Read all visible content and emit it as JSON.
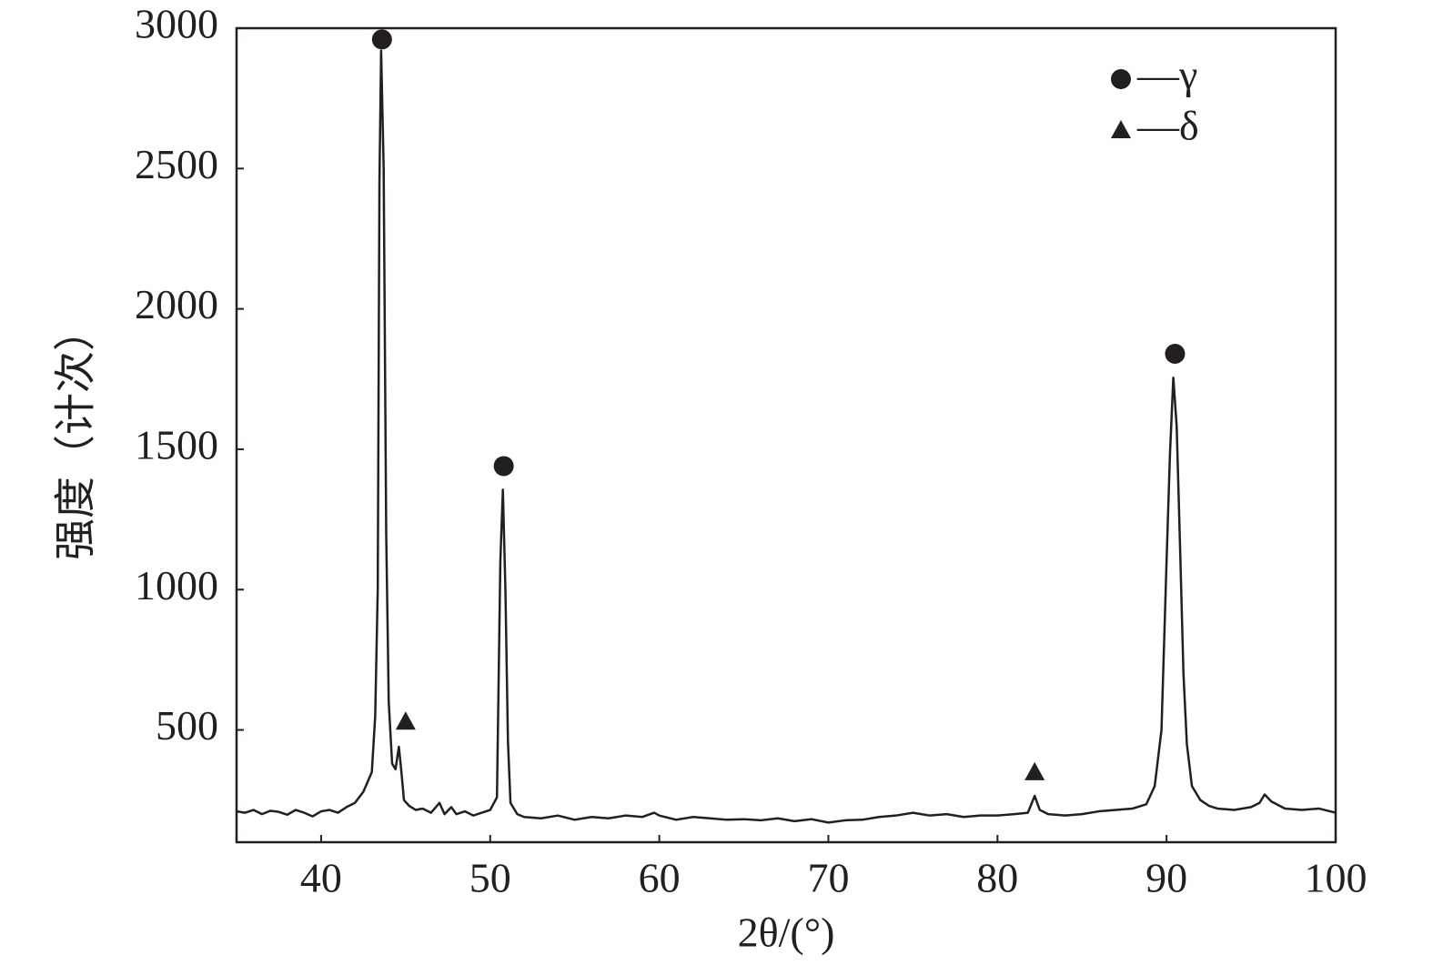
{
  "chart_data": {
    "type": "line",
    "xlabel": "2θ/(°)",
    "ylabel": "强度（计次）",
    "color": "#231f20",
    "xlim": [
      35,
      100
    ],
    "ylim": [
      100,
      3000
    ],
    "xticks": [
      40,
      50,
      60,
      70,
      80,
      90,
      100
    ],
    "yticks": [
      500,
      1000,
      1500,
      2000,
      2500,
      3000
    ],
    "x": [
      35,
      35.5,
      36,
      36.5,
      37,
      37.5,
      38,
      38.5,
      39,
      39.5,
      40,
      40.5,
      41,
      41.5,
      42,
      42.5,
      43,
      43.2,
      43.35,
      43.45,
      43.55,
      43.7,
      43.85,
      44,
      44.2,
      44.4,
      44.6,
      44.75,
      44.9,
      45.2,
      45.6,
      46,
      46.5,
      47,
      47.3,
      47.7,
      48,
      48.5,
      49,
      49.5,
      50,
      50.4,
      50.6,
      50.75,
      50.9,
      51.05,
      51.2,
      51.6,
      52,
      53,
      54,
      55,
      56,
      57,
      58,
      59,
      59.7,
      60,
      61,
      62,
      63,
      64,
      65,
      66,
      67,
      68,
      69,
      70,
      71,
      72,
      73,
      74,
      75,
      76,
      77,
      78,
      79,
      80,
      81,
      81.8,
      82.2,
      82.5,
      83,
      84,
      85,
      86,
      87,
      88,
      88.8,
      89.3,
      89.7,
      90,
      90.2,
      90.4,
      90.6,
      90.8,
      91,
      91.2,
      91.5,
      92,
      92.5,
      93,
      94,
      95,
      95.5,
      95.8,
      96.2,
      97,
      98,
      99,
      100
    ],
    "values": [
      210,
      205,
      215,
      200,
      212,
      208,
      198,
      215,
      205,
      192,
      210,
      215,
      205,
      225,
      240,
      280,
      350,
      550,
      1000,
      2450,
      2920,
      2500,
      1200,
      600,
      380,
      360,
      440,
      350,
      250,
      230,
      215,
      220,
      205,
      240,
      200,
      225,
      200,
      210,
      195,
      205,
      215,
      260,
      1100,
      1356,
      1000,
      460,
      240,
      200,
      190,
      185,
      195,
      180,
      190,
      185,
      195,
      190,
      205,
      195,
      180,
      190,
      185,
      180,
      182,
      178,
      185,
      175,
      182,
      170,
      178,
      180,
      190,
      195,
      205,
      195,
      200,
      190,
      195,
      195,
      200,
      205,
      265,
      215,
      200,
      195,
      200,
      210,
      215,
      220,
      235,
      300,
      500,
      1100,
      1480,
      1755,
      1580,
      1150,
      700,
      450,
      300,
      250,
      230,
      220,
      215,
      225,
      240,
      270,
      245,
      220,
      215,
      220,
      205
    ],
    "peak_markers": [
      {
        "symbol": "circle",
        "x": 43.6,
        "y": 2960
      },
      {
        "symbol": "triangle",
        "x": 45,
        "y": 530
      },
      {
        "symbol": "circle",
        "x": 50.8,
        "y": 1440
      },
      {
        "symbol": "triangle",
        "x": 82.2,
        "y": 350
      },
      {
        "symbol": "circle",
        "x": 90.5,
        "y": 1840
      }
    ],
    "legend": {
      "position": "upper right",
      "entries": [
        {
          "symbol": "circle",
          "label": "—γ"
        },
        {
          "symbol": "triangle",
          "label": "—δ"
        }
      ]
    }
  }
}
